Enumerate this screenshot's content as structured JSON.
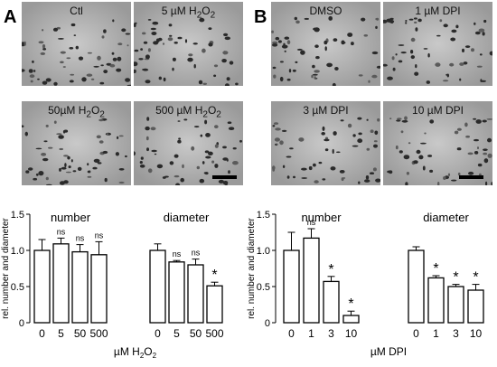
{
  "panels": [
    {
      "letter": "A",
      "images": [
        {
          "label": "Ctl",
          "sub": "",
          "suffix": ""
        },
        {
          "label": "5 µM H",
          "sub": "2",
          "suffix": "O",
          "sub2": "2"
        },
        {
          "label": "50µM H",
          "sub": "2",
          "suffix": "O",
          "sub2": "2"
        },
        {
          "label": "500 µM H",
          "sub": "2",
          "suffix": "O",
          "sub2": "2"
        }
      ]
    },
    {
      "letter": "B",
      "images": [
        {
          "label": "DMSO",
          "sub": "",
          "suffix": ""
        },
        {
          "label": "1 µM DPI",
          "sub": "",
          "suffix": ""
        },
        {
          "label": "3 µM DPI",
          "sub": "",
          "suffix": ""
        },
        {
          "label": "10 µM DPI",
          "sub": "",
          "suffix": ""
        }
      ]
    }
  ],
  "chart_data": [
    {
      "type": "bar",
      "ylabel": "rel. number and diameter",
      "xlabel_main": "µM H",
      "xlabel_sub": "2",
      "xlabel_mid": "O",
      "xlabel_sub2": "2",
      "ylim": [
        0,
        1.5
      ],
      "yticks": [
        "0",
        "0.5",
        "1.0",
        "1.5"
      ],
      "groups": [
        {
          "name": "number",
          "categories": [
            "0",
            "5",
            "50",
            "500"
          ],
          "values": [
            1.0,
            1.09,
            0.98,
            0.94
          ],
          "errors": [
            0.15,
            0.08,
            0.1,
            0.18
          ],
          "annotations": [
            "",
            "ns",
            "ns",
            "ns"
          ]
        },
        {
          "name": "diameter",
          "categories": [
            "0",
            "5",
            "50",
            "500"
          ],
          "values": [
            1.0,
            0.84,
            0.8,
            0.51
          ],
          "errors": [
            0.09,
            0.02,
            0.08,
            0.05
          ],
          "annotations": [
            "",
            "ns",
            "ns",
            "*"
          ]
        }
      ]
    },
    {
      "type": "bar",
      "ylabel": "rel. number and diameter",
      "xlabel_main": "µM DPI",
      "ylim": [
        0,
        1.5
      ],
      "yticks": [
        "0",
        "0.5",
        "1.0",
        "1.5"
      ],
      "groups": [
        {
          "name": "number",
          "categories": [
            "0",
            "1",
            "3",
            "10"
          ],
          "values": [
            1.0,
            1.17,
            0.57,
            0.1
          ],
          "errors": [
            0.25,
            0.13,
            0.07,
            0.06
          ],
          "annotations": [
            "",
            "ns",
            "*",
            "*"
          ]
        },
        {
          "name": "diameter",
          "categories": [
            "0",
            "1",
            "3",
            "10"
          ],
          "values": [
            1.0,
            0.62,
            0.5,
            0.45
          ],
          "errors": [
            0.05,
            0.03,
            0.03,
            0.08
          ],
          "annotations": [
            "",
            "*",
            "*",
            "*"
          ]
        }
      ]
    }
  ]
}
